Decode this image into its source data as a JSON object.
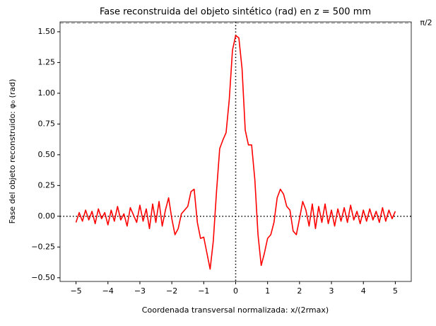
{
  "chart_data": {
    "type": "line",
    "title": "Fase reconstruida del objeto sintético (rad) en z = 500 mm",
    "xlabel": "Coordenada transversal normalizada: x/(2rmax)",
    "ylabel": "Fase del objeto reconstruido: φ₀ (rad)",
    "x": [
      -5,
      -4.9,
      -4.8,
      -4.7,
      -4.6,
      -4.5,
      -4.4,
      -4.3,
      -4.2,
      -4.1,
      -4,
      -3.9,
      -3.8,
      -3.7,
      -3.6,
      -3.5,
      -3.4,
      -3.3,
      -3.2,
      -3.1,
      -3,
      -2.9,
      -2.8,
      -2.7,
      -2.6,
      -2.5,
      -2.4,
      -2.3,
      -2.2,
      -2.1,
      -2,
      -1.9,
      -1.8,
      -1.7,
      -1.6,
      -1.5,
      -1.4,
      -1.3,
      -1.2,
      -1.1,
      -1,
      -0.9,
      -0.8,
      -0.7,
      -0.6,
      -0.5,
      -0.4,
      -0.3,
      -0.2,
      -0.1,
      0,
      0.1,
      0.2,
      0.3,
      0.4,
      0.5,
      0.6,
      0.7,
      0.8,
      0.9,
      1,
      1.1,
      1.2,
      1.3,
      1.4,
      1.5,
      1.6,
      1.7,
      1.8,
      1.9,
      2,
      2.1,
      2.2,
      2.3,
      2.4,
      2.5,
      2.6,
      2.7,
      2.8,
      2.9,
      3,
      3.1,
      3.2,
      3.3,
      3.4,
      3.5,
      3.6,
      3.7,
      3.8,
      3.9,
      4,
      4.1,
      4.2,
      4.3,
      4.4,
      4.5,
      4.6,
      4.7,
      4.8,
      4.9,
      5
    ],
    "series": [
      {
        "color": "#ff0000",
        "values": [
          -0.05,
          0.03,
          -0.04,
          0.05,
          -0.03,
          0.04,
          -0.06,
          0.06,
          -0.02,
          0.03,
          -0.07,
          0.05,
          -0.04,
          0.08,
          -0.03,
          0.02,
          -0.08,
          0.07,
          0.01,
          -0.05,
          0.09,
          -0.04,
          0.06,
          -0.1,
          0.1,
          -0.05,
          0.12,
          -0.08,
          0.05,
          0.15,
          -0.02,
          -0.15,
          -0.1,
          0.02,
          0.05,
          0.08,
          0.2,
          0.22,
          -0.05,
          -0.18,
          -0.17,
          -0.3,
          -0.43,
          -0.2,
          0.2,
          0.55,
          0.62,
          0.68,
          0.95,
          1.35,
          1.47,
          1.45,
          1.2,
          0.7,
          0.58,
          0.58,
          0.3,
          -0.15,
          -0.4,
          -0.3,
          -0.18,
          -0.15,
          -0.05,
          0.15,
          0.22,
          0.18,
          0.08,
          0.05,
          -0.12,
          -0.15,
          -0.02,
          0.12,
          0.05,
          -0.08,
          0.1,
          -0.1,
          0.08,
          -0.05,
          0.1,
          -0.06,
          0.05,
          -0.08,
          0.06,
          -0.04,
          0.07,
          -0.05,
          0.09,
          -0.03,
          0.04,
          -0.06,
          0.05,
          -0.04,
          0.06,
          -0.03,
          0.04,
          -0.05,
          0.07,
          -0.04,
          0.05,
          -0.02,
          0.04
        ]
      }
    ],
    "xlim": [
      -5.5,
      5.5
    ],
    "ylim": [
      -0.53,
      1.58
    ],
    "xticks": [
      {
        "value": -5,
        "label": "−5"
      },
      {
        "value": -4,
        "label": "−4"
      },
      {
        "value": -3,
        "label": "−3"
      },
      {
        "value": -2,
        "label": "−2"
      },
      {
        "value": -1,
        "label": "−1"
      },
      0,
      1,
      2,
      3,
      4,
      5
    ],
    "yticks": [
      {
        "value": -0.5,
        "label": "−0.50"
      },
      {
        "value": -0.25,
        "label": "−0.25"
      },
      {
        "value": 0,
        "label": "0.00"
      },
      {
        "value": 0.25,
        "label": "0.25"
      },
      {
        "value": 0.5,
        "label": "0.50"
      },
      {
        "value": 0.75,
        "label": "0.75"
      },
      {
        "value": 1,
        "label": "1.00"
      },
      {
        "value": 1.25,
        "label": "1.25"
      },
      {
        "value": 1.5,
        "label": "1.50"
      }
    ],
    "reference_lines": {
      "x": [
        0
      ],
      "y": [
        0
      ]
    },
    "annotations": [
      {
        "text": "π/2",
        "y": 1.5708
      }
    ]
  }
}
